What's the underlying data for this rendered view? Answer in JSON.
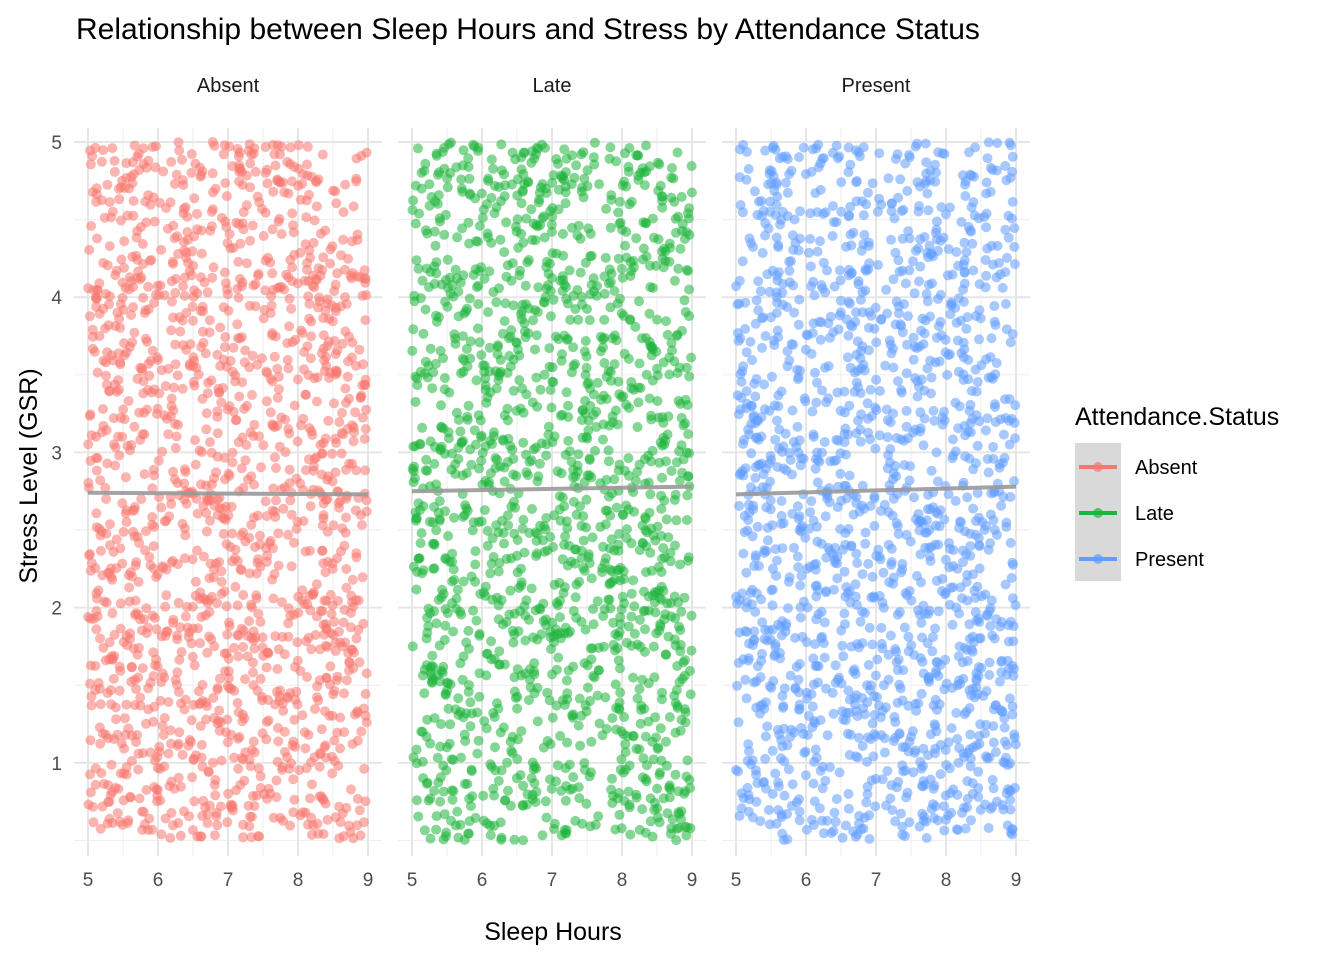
{
  "chart_data": {
    "type": "scatter",
    "title": "Relationship between Sleep Hours and Stress by Attendance Status",
    "xlabel": "Sleep Hours",
    "ylabel": "Stress Level (GSR)",
    "xlim": [
      5,
      9
    ],
    "ylim": [
      0.5,
      5
    ],
    "x_ticks": [
      "5",
      "6",
      "7",
      "8",
      "9"
    ],
    "y_ticks": [
      "1",
      "2",
      "3",
      "4",
      "5"
    ],
    "grid": true,
    "legend": {
      "title": "Attendance.Status",
      "position": "right",
      "entries": [
        "Absent",
        "Late",
        "Present"
      ]
    },
    "point_alpha": 0.55,
    "points_per_panel_approx": 1600,
    "trend_line_color": "#999999",
    "panels": [
      {
        "name": "Absent",
        "color": "#F8766D",
        "trend": {
          "x": [
            5,
            9
          ],
          "y": [
            2.74,
            2.73
          ]
        }
      },
      {
        "name": "Late",
        "color": "#1DB53A",
        "trend": {
          "x": [
            5,
            9
          ],
          "y": [
            2.75,
            2.78
          ]
        }
      },
      {
        "name": "Present",
        "color": "#619CFF",
        "trend": {
          "x": [
            5,
            9
          ],
          "y": [
            2.73,
            2.78
          ]
        }
      }
    ]
  }
}
